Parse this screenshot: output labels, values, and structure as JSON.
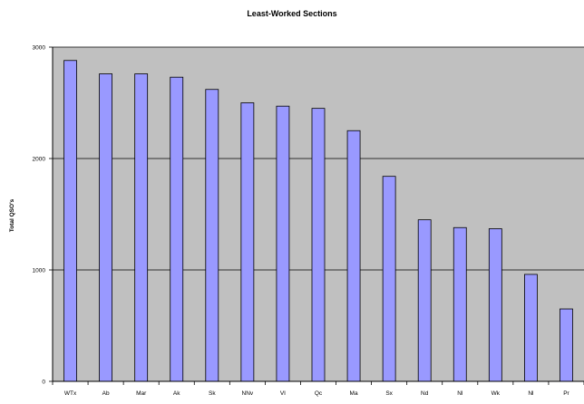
{
  "chart_data": {
    "type": "bar",
    "title": "Least-Worked Sections",
    "xlabel": "",
    "ylabel": "Total QSO's",
    "categories": [
      "WTx",
      "Ab",
      "Mar",
      "Ak",
      "Sk",
      "NNv",
      "VI",
      "Qc",
      "Ma",
      "Sx",
      "Nd",
      "Nl",
      "Wk",
      "Nl",
      "Pr"
    ],
    "values": [
      2880,
      2760,
      2760,
      2730,
      2620,
      2500,
      2470,
      2450,
      2250,
      1840,
      1450,
      1380,
      1370,
      960,
      650
    ],
    "ylim": [
      0,
      3000
    ],
    "yticks": [
      0,
      1000,
      2000,
      3000
    ],
    "grid": true,
    "legend": "none",
    "colors": {
      "plot_background": "#c0c0c0",
      "bar_fill": "#9999ff",
      "bar_stroke": "#000000",
      "gridline": "#000000"
    }
  }
}
